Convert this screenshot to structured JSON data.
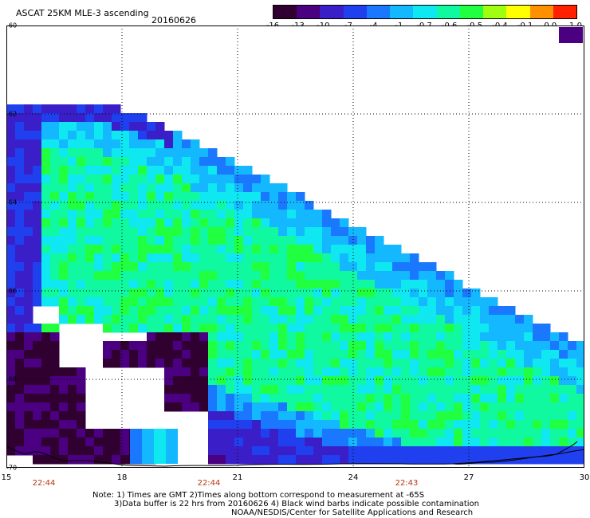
{
  "header": {
    "title": "ASCAT 25KM MLE-3 ascending",
    "date": "20160626"
  },
  "colorbar": {
    "labels": [
      "-16",
      "-13",
      "-10",
      "-7",
      "-4",
      "-1",
      "-0.7",
      "-0.6",
      "-0.5",
      "-0.4",
      "-0.1",
      "0.0",
      "1.0"
    ],
    "colors": [
      "#300030",
      "#4a0080",
      "#3a1fc8",
      "#2040f0",
      "#1a78ff",
      "#14b8ff",
      "#0fe8f0",
      "#10f8a0",
      "#20ff40",
      "#a0ff10",
      "#ffff00",
      "#ff9000",
      "#ff2000"
    ]
  },
  "axes": {
    "x_ticks": [
      "15",
      "18",
      "21",
      "24",
      "27",
      "30"
    ],
    "y_ticks": [
      "-60",
      "-62",
      "-64",
      "-66",
      "-68",
      "-70"
    ]
  },
  "time_labels": [
    "22:44",
    "22:44",
    "22:43"
  ],
  "notes": [
    "Note: 1) Times are GMT 2)Times along bottom correspond to measurement at -65S",
    "3)Data buffer is 22 hrs from 20160626 4) Black wind barbs indicate possible contamination",
    "NOAA/NESDIS/Center for Satellite Applications and Research"
  ]
}
